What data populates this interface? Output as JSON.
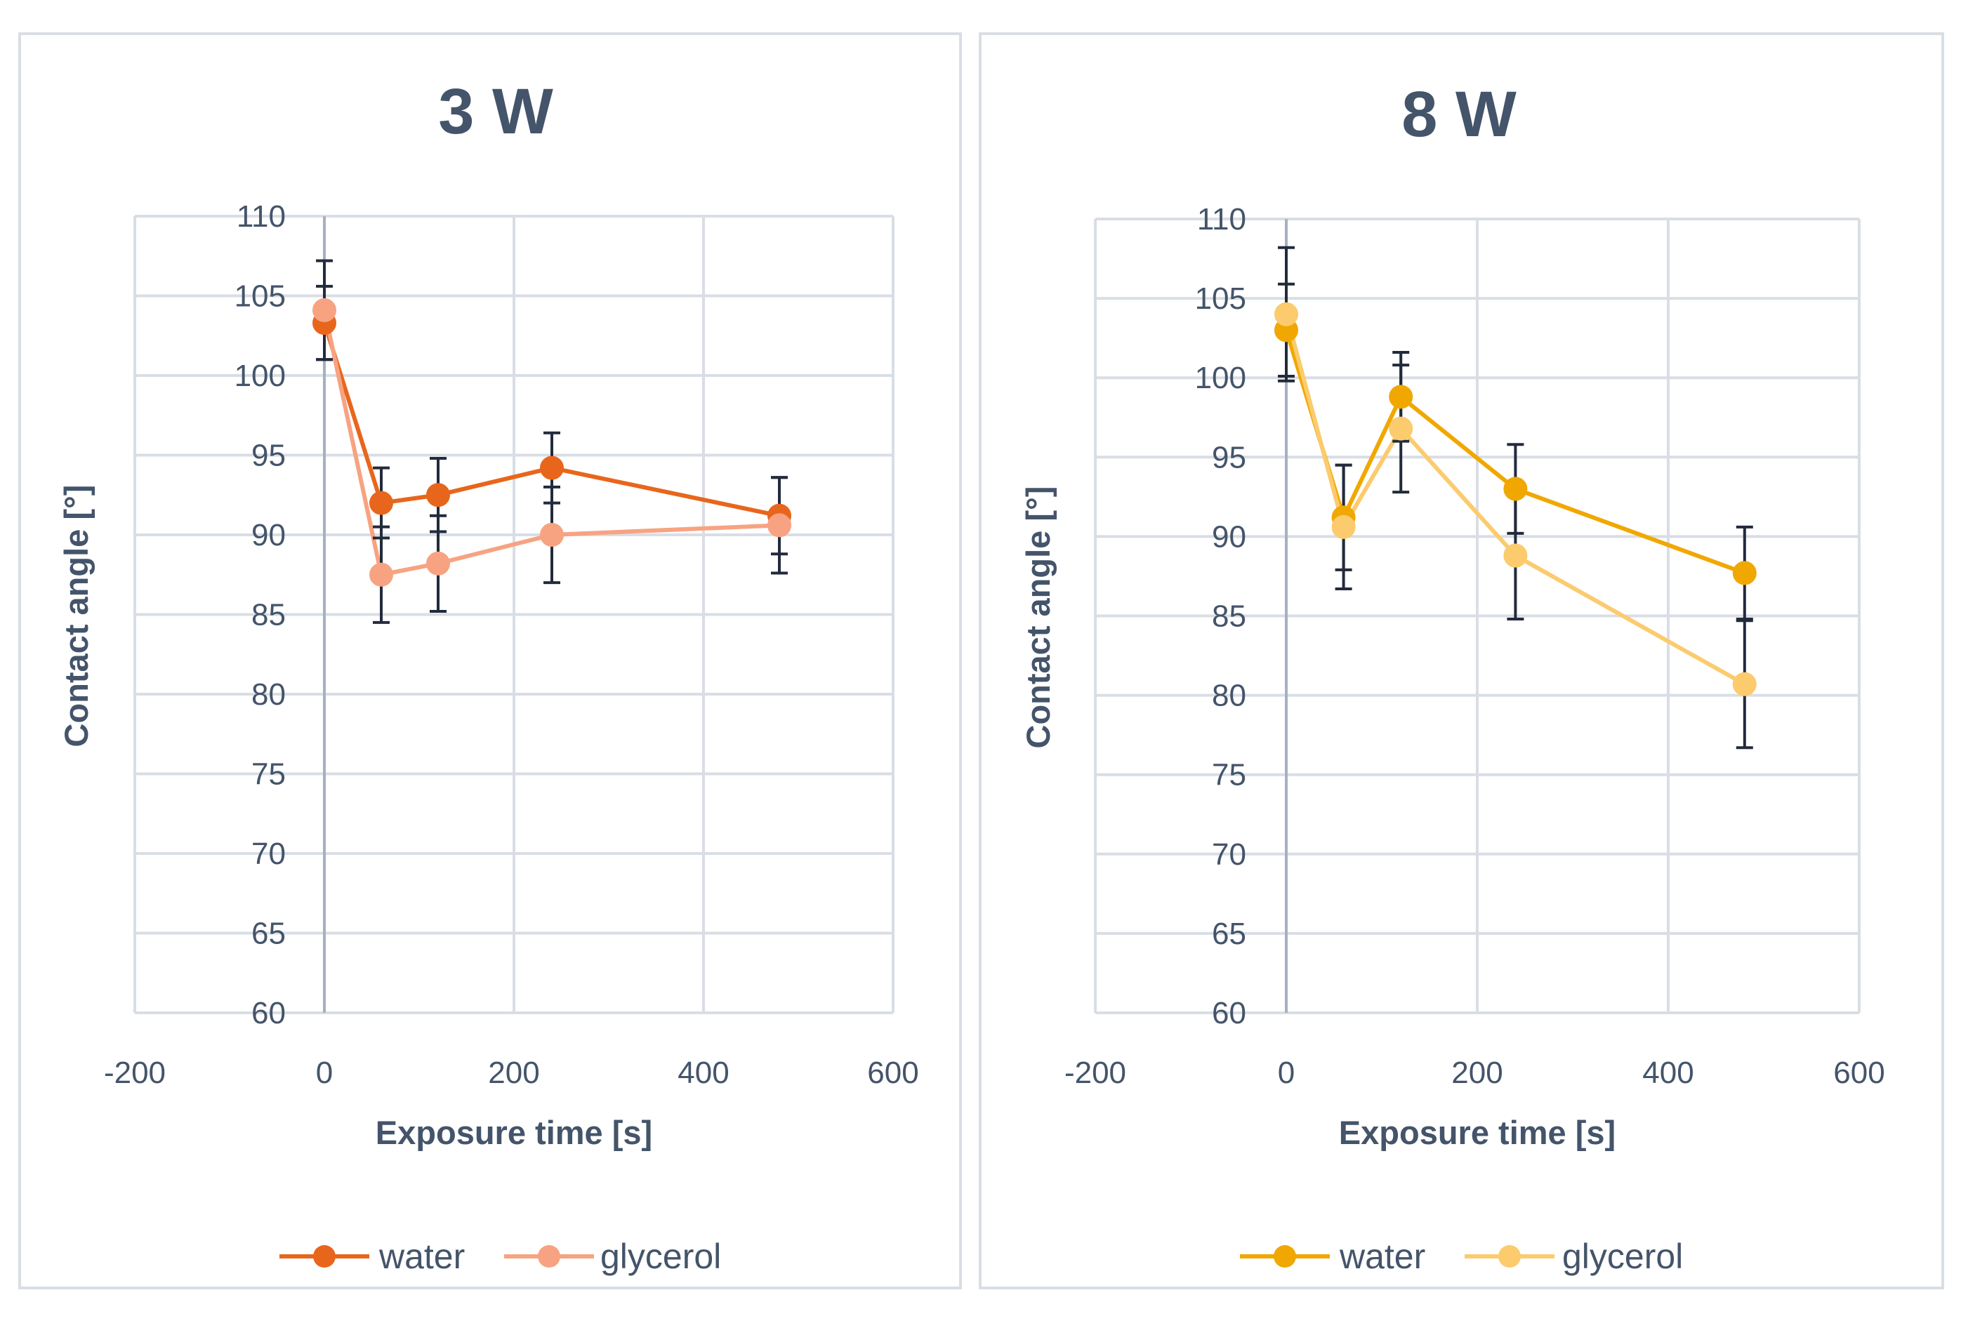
{
  "chart_data": [
    {
      "type": "line",
      "title": "3 W",
      "xlabel": "Exposure time [s]",
      "ylabel": "Contact angle [°]",
      "xlim": [
        -200,
        600
      ],
      "ylim": [
        60,
        110
      ],
      "x_ticks": [
        -200,
        0,
        200,
        400,
        600
      ],
      "y_ticks": [
        60,
        65,
        70,
        75,
        80,
        85,
        90,
        95,
        100,
        105,
        110
      ],
      "grid": true,
      "legend_position": "bottom",
      "series": [
        {
          "name": "water",
          "color": "#e8661c",
          "x": [
            0,
            60,
            120,
            240,
            480
          ],
          "y": [
            103.3,
            92.0,
            92.5,
            94.2,
            91.2
          ],
          "err": [
            2.3,
            2.2,
            2.3,
            2.2,
            2.4
          ]
        },
        {
          "name": "glycerol",
          "color": "#f7a382",
          "x": [
            0,
            60,
            120,
            240,
            480
          ],
          "y": [
            104.1,
            87.5,
            88.2,
            90.0,
            90.6
          ],
          "err": [
            3.1,
            3.0,
            3.0,
            3.0,
            3.0
          ]
        }
      ]
    },
    {
      "type": "line",
      "title": "8 W",
      "xlabel": "Exposure time [s]",
      "ylabel": "Contact angle [°]",
      "xlim": [
        -200,
        600
      ],
      "ylim": [
        60,
        110
      ],
      "x_ticks": [
        -200,
        0,
        200,
        400,
        600
      ],
      "y_ticks": [
        60,
        65,
        70,
        75,
        80,
        85,
        90,
        95,
        100,
        105,
        110
      ],
      "grid": true,
      "legend_position": "bottom",
      "series": [
        {
          "name": "water",
          "color": "#f0a800",
          "x": [
            0,
            60,
            120,
            240,
            480
          ],
          "y": [
            103.0,
            91.2,
            98.8,
            93.0,
            87.7
          ],
          "err": [
            2.9,
            3.3,
            2.8,
            2.8,
            2.9
          ]
        },
        {
          "name": "glycerol",
          "color": "#fbcb6e",
          "x": [
            0,
            60,
            120,
            240,
            480
          ],
          "y": [
            104.0,
            90.6,
            96.8,
            88.8,
            80.7
          ],
          "err": [
            4.2,
            3.9,
            4.0,
            4.0,
            4.0
          ]
        }
      ]
    }
  ],
  "style": {
    "background": "#ffffff",
    "frame_color": "#d9dee5",
    "grid_color": "#d9dee5",
    "zero_axis_color": "#a5b1c2",
    "text_color": "#44546a",
    "errorbar_color": "#222b3c"
  }
}
